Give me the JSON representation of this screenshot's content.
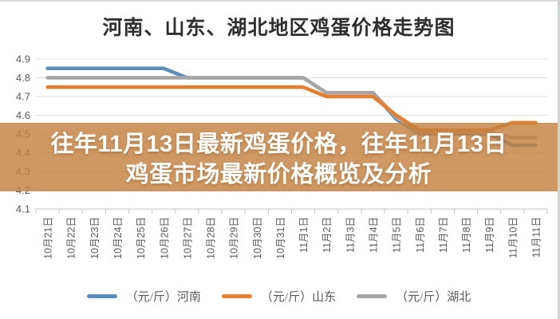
{
  "page": {
    "title": "河南、山东、湖北地区鸡蛋价格走势图"
  },
  "banner": {
    "line1": "往年11月13日最新鸡蛋价格，往年11月13日",
    "line2": "鸡蛋市场最新价格概览及分析"
  },
  "colors": {
    "henan_blue": "#578ebe",
    "shandong_orange": "#e67e2e",
    "hubei_gray": "#a6a6a6",
    "gridline": "#dedede",
    "axis": "#c3c3c3",
    "tick_label": "#595959",
    "banner_bg": "rgba(196,128,62,0.82)",
    "banner_text": "#ffffff"
  },
  "chart_data": {
    "type": "line",
    "title": "河南、山东、湖北地区鸡蛋价格走势图",
    "categories": [
      "10月21日",
      "10月22日",
      "10月23日",
      "10月24日",
      "10月25日",
      "10月26日",
      "10月27日",
      "10月28日",
      "10月29日",
      "10月30日",
      "10月31日",
      "11月1日",
      "11月2日",
      "11月3日",
      "11月4日",
      "11月5日",
      "11月6日",
      "11月7日",
      "11月8日",
      "11月9日",
      "11月10日",
      "11月11日"
    ],
    "series": [
      {
        "name": "（元/斤）河南",
        "color": "#578ebe",
        "values": [
          4.85,
          4.85,
          4.85,
          4.85,
          4.85,
          4.85,
          4.8,
          4.8,
          4.8,
          4.8,
          4.8,
          4.8,
          4.72,
          4.72,
          4.72,
          4.58,
          4.5,
          4.5,
          4.5,
          4.5,
          4.44,
          4.44
        ]
      },
      {
        "name": "（元/斤）山东",
        "color": "#e67e2e",
        "values": [
          4.75,
          4.75,
          4.75,
          4.75,
          4.75,
          4.75,
          4.75,
          4.75,
          4.75,
          4.75,
          4.75,
          4.75,
          4.7,
          4.7,
          4.7,
          4.6,
          4.52,
          4.52,
          4.52,
          4.52,
          4.56,
          4.56
        ]
      },
      {
        "name": "（元/斤）湖北",
        "color": "#a6a6a6",
        "values": [
          4.8,
          4.8,
          4.8,
          4.8,
          4.8,
          4.8,
          4.8,
          4.8,
          4.8,
          4.8,
          4.8,
          4.8,
          4.72,
          4.72,
          4.72,
          4.59,
          4.51,
          4.51,
          4.51,
          4.51,
          4.48,
          4.48
        ]
      }
    ],
    "ylim": [
      4.1,
      4.9
    ],
    "yticks": [
      4.9,
      4.8,
      4.7,
      4.6,
      4.5,
      4.4,
      4.3,
      4.2,
      4.1
    ],
    "xlabel": "",
    "ylabel": "",
    "grid": true,
    "legend_position": "bottom"
  }
}
